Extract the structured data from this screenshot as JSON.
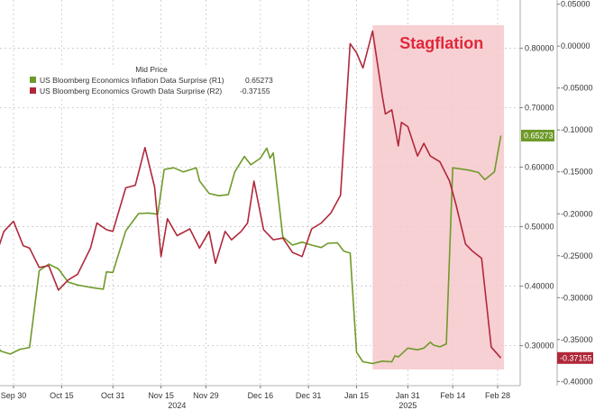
{
  "chart_data": {
    "type": "line",
    "legend": {
      "title": "Mid Price",
      "placement": "top-left",
      "entries": [
        {
          "label": "US Bloomberg Economics Inflation Data Surprise  (R1)",
          "value": "0.65273",
          "color": "#6f9a2a"
        },
        {
          "label": "US Bloomberg Economics Growth Data Surprise  (R2)",
          "value": "-0.37155",
          "color": "#b0283a"
        }
      ]
    },
    "annotation": {
      "text": "Stagflation",
      "color": "#e0283a",
      "shade_color": "#f6c8cc",
      "x_start": "2025-01-20",
      "x_end": "2025-03-02"
    },
    "x_ticks": [
      "Sep 30",
      "Oct 15",
      "Oct 31",
      "Nov 15",
      "Nov 29",
      "Dec 16",
      "Dec 31",
      "Jan 15",
      "Jan 31",
      "Feb 14",
      "Feb 28"
    ],
    "x_year_labels": [
      {
        "label": "2024",
        "x": "2024-11-20"
      },
      {
        "label": "2025",
        "x": "2025-01-31"
      }
    ],
    "axis_r1": {
      "ticks": [
        "0.80000",
        "0.70000",
        "0.60000",
        "0.50000",
        "0.40000",
        "0.30000"
      ],
      "range": [
        0.2328,
        0.8809
      ]
    },
    "axis_r2": {
      "ticks": [
        "0.05000",
        "0.00000",
        "-0.05000",
        "-0.10000",
        "-0.15000",
        "-0.20000",
        "-0.25000",
        "-0.30000",
        "-0.35000",
        "-0.40000"
      ],
      "range": [
        -0.405,
        0.055
      ]
    },
    "grid": true,
    "last_value_labels": [
      {
        "series": 0,
        "text": "0.65273",
        "bg": "#6f9a2a"
      },
      {
        "series": 1,
        "text": "-0.37155",
        "bg": "#b0283a"
      }
    ],
    "series": [
      {
        "name": "US Bloomberg Economics Inflation Data Surprise  (R1)",
        "axis": "r1",
        "color": "#6f9a2a",
        "x": [
          "2024-09-22",
          "2024-09-24",
          "2024-09-26",
          "2024-09-29",
          "2024-10-02",
          "2024-10-05",
          "2024-10-08",
          "2024-10-11",
          "2024-10-14",
          "2024-10-17",
          "2024-10-20",
          "2024-10-24",
          "2024-10-28",
          "2024-10-29",
          "2024-10-31",
          "2024-11-04",
          "2024-11-08",
          "2024-11-11",
          "2024-11-14",
          "2024-11-16",
          "2024-11-19",
          "2024-11-22",
          "2024-11-26",
          "2024-11-27",
          "2024-11-30",
          "2024-12-03",
          "2024-12-06",
          "2024-12-08",
          "2024-12-11",
          "2024-12-13",
          "2024-12-16",
          "2024-12-18",
          "2024-12-19",
          "2024-12-20",
          "2024-12-23",
          "2024-12-26",
          "2024-12-29",
          "2025-01-01",
          "2025-01-04",
          "2025-01-06",
          "2025-01-09",
          "2025-01-11",
          "2025-01-12",
          "2025-01-13",
          "2025-01-15",
          "2025-01-17",
          "2025-01-20",
          "2025-01-23",
          "2025-01-26",
          "2025-01-27",
          "2025-01-28",
          "2025-01-31",
          "2025-02-03",
          "2025-02-05",
          "2025-02-07",
          "2025-02-08",
          "2025-02-10",
          "2025-02-12",
          "2025-02-14",
          "2025-02-19",
          "2025-02-22",
          "2025-02-24",
          "2025-02-27",
          "2025-03-01"
        ],
        "values": [
          0.309,
          0.307,
          0.291,
          0.286,
          0.294,
          0.297,
          0.426,
          0.437,
          0.429,
          0.407,
          0.402,
          0.398,
          0.395,
          0.424,
          0.423,
          0.493,
          0.522,
          0.523,
          0.521,
          0.596,
          0.599,
          0.592,
          0.599,
          0.577,
          0.556,
          0.552,
          0.554,
          0.592,
          0.618,
          0.604,
          0.615,
          0.632,
          0.615,
          0.624,
          0.483,
          0.469,
          0.474,
          0.469,
          0.465,
          0.472,
          0.473,
          0.459,
          0.457,
          0.456,
          0.289,
          0.273,
          0.27,
          0.274,
          0.273,
          0.283,
          0.281,
          0.296,
          0.293,
          0.296,
          0.306,
          0.301,
          0.298,
          0.303,
          0.599,
          0.595,
          0.591,
          0.579,
          0.592,
          0.653
        ]
      },
      {
        "name": "US Bloomberg Economics Growth Data Surprise  (R2)",
        "axis": "r2",
        "color": "#b0283a",
        "x": [
          "2024-09-22",
          "2024-09-25",
          "2024-09-27",
          "2024-09-30",
          "2024-10-03",
          "2024-10-05",
          "2024-10-08",
          "2024-10-11",
          "2024-10-14",
          "2024-10-17",
          "2024-10-20",
          "2024-10-24",
          "2024-10-26",
          "2024-10-29",
          "2024-10-31",
          "2024-11-04",
          "2024-11-07",
          "2024-11-10",
          "2024-11-13",
          "2024-11-15",
          "2024-11-17",
          "2024-11-20",
          "2024-11-24",
          "2024-11-27",
          "2024-11-30",
          "2024-12-02",
          "2024-12-05",
          "2024-12-07",
          "2024-12-10",
          "2024-12-12",
          "2024-12-14",
          "2024-12-17",
          "2024-12-20",
          "2024-12-23",
          "2024-12-26",
          "2024-12-29",
          "2025-01-01",
          "2025-01-04",
          "2025-01-07",
          "2025-01-10",
          "2025-01-13",
          "2025-01-15",
          "2025-01-17",
          "2025-01-20",
          "2025-01-23",
          "2025-01-24",
          "2025-01-26",
          "2025-01-28",
          "2025-01-29",
          "2025-01-31",
          "2025-02-03",
          "2025-02-05",
          "2025-02-07",
          "2025-02-10",
          "2025-02-13",
          "2025-02-15",
          "2025-02-18",
          "2025-02-20",
          "2025-02-23",
          "2025-02-26",
          "2025-03-01"
        ],
        "values": [
          -0.249,
          -0.244,
          -0.221,
          -0.209,
          -0.238,
          -0.241,
          -0.264,
          -0.262,
          -0.291,
          -0.279,
          -0.272,
          -0.241,
          -0.211,
          -0.219,
          -0.221,
          -0.169,
          -0.166,
          -0.121,
          -0.168,
          -0.251,
          -0.206,
          -0.226,
          -0.218,
          -0.241,
          -0.221,
          -0.259,
          -0.221,
          -0.231,
          -0.221,
          -0.211,
          -0.161,
          -0.219,
          -0.231,
          -0.229,
          -0.246,
          -0.251,
          -0.218,
          -0.211,
          -0.199,
          -0.178,
          0.003,
          -0.008,
          -0.026,
          0.018,
          -0.059,
          -0.081,
          -0.076,
          -0.119,
          -0.091,
          -0.096,
          -0.131,
          -0.116,
          -0.131,
          -0.138,
          -0.161,
          -0.189,
          -0.236,
          -0.244,
          -0.253,
          -0.359,
          -0.372
        ]
      }
    ]
  }
}
